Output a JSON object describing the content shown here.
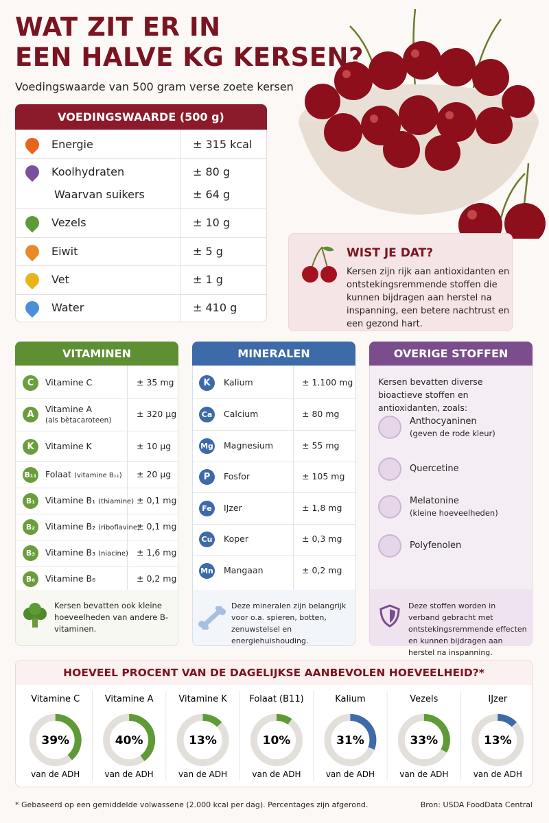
{
  "header": {
    "title_line1": "WAT ZIT ER IN",
    "title_line2": "EEN HALVE KG KERSEN?",
    "subtitle": "Voedingswaarde van 500 gram verse zoete kersen"
  },
  "nutrition": {
    "title": "VOEDINGSWAARDE (500 g)",
    "rows": [
      {
        "label": "Energie",
        "value": "± 315 kcal"
      },
      {
        "label": "Koolhydraten",
        "value": "± 80 g"
      },
      {
        "label": "Waarvan suikers",
        "value": "± 64 g"
      },
      {
        "label": "Vezels",
        "value": "± 10 g"
      },
      {
        "label": "Eiwit",
        "value": "± 5 g"
      },
      {
        "label": "Vet",
        "value": "± 1 g"
      },
      {
        "label": "Water",
        "value": "± 410 g"
      }
    ]
  },
  "tip": {
    "title": "WIST JE DAT?",
    "text": "Kersen zijn rijk aan antioxidanten en ontstekingsremmende stoffen die kunnen bijdragen aan herstel na inspanning, een betere nachtrust en een gezond hart."
  },
  "vitamins": {
    "title": "VITAMINEN",
    "rows": [
      {
        "icon": "C",
        "name": "Vitamine C",
        "value": "± 35 mg"
      },
      {
        "icon": "A",
        "name": "Vitamine A",
        "note": "(als bètacaroteen)",
        "value": "± 320 µg"
      },
      {
        "icon": "K",
        "name": "Vitamine K",
        "value": "± 10 µg"
      },
      {
        "icon": "B₁₁",
        "name": "Folaat",
        "note": "(vitamine B₁₁)",
        "value": "± 20 µg"
      },
      {
        "icon": "B₁",
        "name": "Vitamine B₁",
        "note": "(thiamine)",
        "value": "± 0,1 mg"
      },
      {
        "icon": "B₂",
        "name": "Vitamine B₂",
        "note": "(riboflavine)",
        "value": "± 0,1 mg"
      },
      {
        "icon": "B₃",
        "name": "Vitamine B₃",
        "note": "(niacine)",
        "value": "± 1,6 mg"
      },
      {
        "icon": "B₆",
        "name": "Vitamine B₆",
        "value": "± 0,2 mg"
      }
    ],
    "footer": "Kersen bevatten ook kleine hoeveelheden van andere B-vitaminen."
  },
  "minerals": {
    "title": "MINERALEN",
    "rows": [
      {
        "icon": "K",
        "name": "Kalium",
        "value": "± 1.100 mg"
      },
      {
        "icon": "Ca",
        "name": "Calcium",
        "value": "± 80 mg"
      },
      {
        "icon": "Mg",
        "name": "Magnesium",
        "value": "± 55 mg"
      },
      {
        "icon": "P",
        "name": "Fosfor",
        "value": "± 105 mg"
      },
      {
        "icon": "Fe",
        "name": "IJzer",
        "value": "± 1,8 mg"
      },
      {
        "icon": "Cu",
        "name": "Koper",
        "value": "± 0,3 mg"
      },
      {
        "icon": "Mn",
        "name": "Mangaan",
        "value": "± 0,2 mg"
      }
    ],
    "footer": "Deze mineralen zijn belangrijk voor o.a. spieren, botten, zenuwstelsel en energiehuishouding."
  },
  "others": {
    "title": "OVERIGE STOFFEN",
    "intro": "Kersen bevatten diverse bioactieve stoffen en antioxidanten, zoals:",
    "items": [
      {
        "name": "Anthocyaninen",
        "note": "(geven de rode kleur)"
      },
      {
        "name": "Quercetine"
      },
      {
        "name": "Melatonine",
        "note": "(kleine hoeveelheden)"
      },
      {
        "name": "Polyfenolen"
      }
    ],
    "footer": "Deze stoffen worden in verband gebracht met ontstekingsremmende effecten en kunnen bijdragen aan herstel na inspanning."
  },
  "adh": {
    "title": "HOEVEEL PROCENT VAN DE DAGELIJKSE AANBEVOLEN HOEVEELHEID?*",
    "items": [
      {
        "name": "Vitamine C",
        "value": 39,
        "value_label": "39%",
        "caption": "van de ADH",
        "color": "#5e9a35"
      },
      {
        "name": "Vitamine A",
        "value": 40,
        "value_label": "40%",
        "caption": "van de ADH",
        "color": "#5e9a35"
      },
      {
        "name": "Vitamine K",
        "value": 13,
        "value_label": "13%",
        "caption": "van de ADH",
        "color": "#5e9a35"
      },
      {
        "name": "Folaat (B11)",
        "value": 10,
        "value_label": "10%",
        "caption": "van de ADH",
        "color": "#5e9a35"
      },
      {
        "name": "Kalium",
        "value": 31,
        "value_label": "31%",
        "caption": "van de ADH",
        "color": "#3d6aa8"
      },
      {
        "name": "Vezels",
        "value": 33,
        "value_label": "33%",
        "caption": "van de ADH",
        "color": "#5e9a35"
      },
      {
        "name": "IJzer",
        "value": 13,
        "value_label": "13%",
        "caption": "van de ADH",
        "color": "#3d6aa8"
      }
    ]
  },
  "footer": {
    "note": "* Gebaseerd op een gemiddelde volwassene (2.000 kcal per dag). Percentages zijn afgerond.",
    "source": "Bron: USDA FoodData Central"
  }
}
